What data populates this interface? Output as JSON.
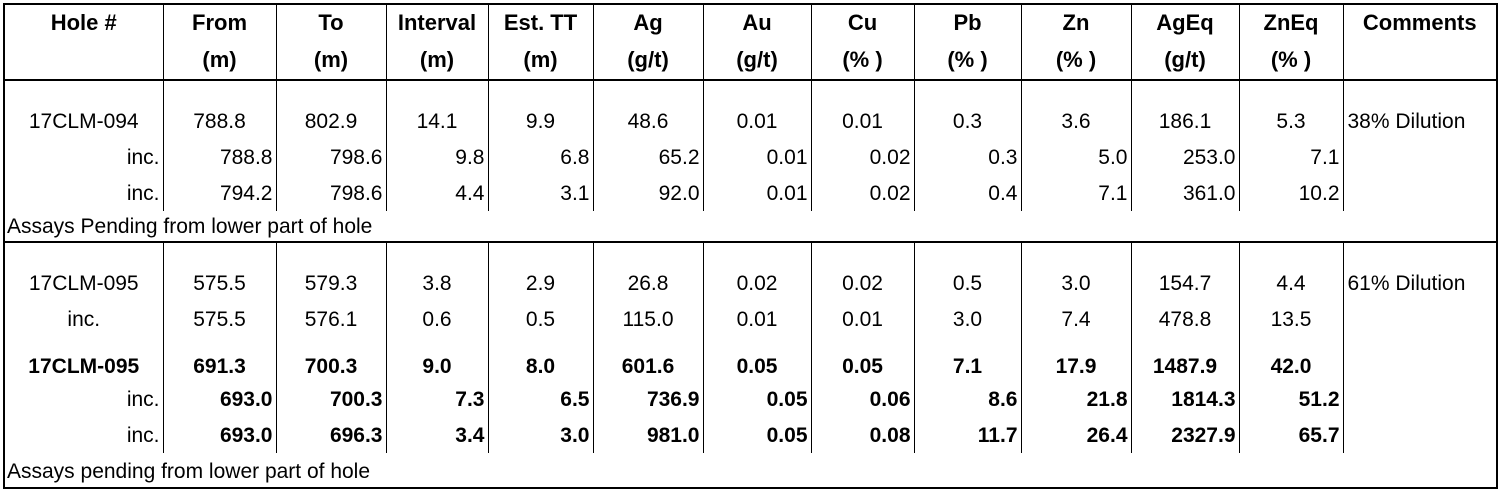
{
  "headers": [
    {
      "line1": "Hole #",
      "line2": ""
    },
    {
      "line1": "From",
      "line2": "(m)"
    },
    {
      "line1": "To",
      "line2": "(m)"
    },
    {
      "line1": "Interval",
      "line2": "(m)"
    },
    {
      "line1": "Est. TT",
      "line2": "(m)"
    },
    {
      "line1": "Ag",
      "line2": "(g/t)"
    },
    {
      "line1": "Au",
      "line2": "(g/t)"
    },
    {
      "line1": "Cu",
      "line2": "(% )"
    },
    {
      "line1": "Pb",
      "line2": "(% )"
    },
    {
      "line1": "Zn",
      "line2": "(% )"
    },
    {
      "line1": "AgEq",
      "line2": "(g/t)"
    },
    {
      "line1": "ZnEq",
      "line2": "(% )"
    },
    {
      "line1": "Comments",
      "line2": ""
    }
  ],
  "block1": {
    "rows": [
      {
        "hole": "17CLM-094",
        "from": "788.8",
        "to": "802.9",
        "interval": "14.1",
        "tt": "9.9",
        "ag": "48.6",
        "au": "0.01",
        "cu": "0.01",
        "pb": "0.3",
        "zn": "3.6",
        "ageq": "186.1",
        "zneq": "5.3",
        "comment": "38% Dilution"
      },
      {
        "hole": "inc.",
        "from": "788.8",
        "to": "798.6",
        "interval": "9.8",
        "tt": "6.8",
        "ag": "65.2",
        "au": "0.01",
        "cu": "0.02",
        "pb": "0.3",
        "zn": "5.0",
        "ageq": "253.0",
        "zneq": "7.1",
        "comment": ""
      },
      {
        "hole": "inc.",
        "from": "794.2",
        "to": "798.6",
        "interval": "4.4",
        "tt": "3.1",
        "ag": "92.0",
        "au": "0.01",
        "cu": "0.02",
        "pb": "0.4",
        "zn": "7.1",
        "ageq": "361.0",
        "zneq": "10.2",
        "comment": ""
      }
    ],
    "note": "Assays Pending from lower part of hole"
  },
  "block2": {
    "rows_a": [
      {
        "hole": "17CLM-095",
        "from": "575.5",
        "to": "579.3",
        "interval": "3.8",
        "tt": "2.9",
        "ag": "26.8",
        "au": "0.02",
        "cu": "0.02",
        "pb": "0.5",
        "zn": "3.0",
        "ageq": "154.7",
        "zneq": "4.4",
        "comment": "61% Dilution"
      },
      {
        "hole": "inc.",
        "from": "575.5",
        "to": "576.1",
        "interval": "0.6",
        "tt": "0.5",
        "ag": "115.0",
        "au": "0.01",
        "cu": "0.01",
        "pb": "3.0",
        "zn": "7.4",
        "ageq": "478.8",
        "zneq": "13.5",
        "comment": ""
      }
    ],
    "rows_b": [
      {
        "hole": "17CLM-095",
        "from": "691.3",
        "to": "700.3",
        "interval": "9.0",
        "tt": "8.0",
        "ag": "601.6",
        "au": "0.05",
        "cu": "0.05",
        "pb": "7.1",
        "zn": "17.9",
        "ageq": "1487.9",
        "zneq": "42.0",
        "comment": ""
      },
      {
        "hole": "inc.",
        "from": "693.0",
        "to": "700.3",
        "interval": "7.3",
        "tt": "6.5",
        "ag": "736.9",
        "au": "0.05",
        "cu": "0.06",
        "pb": "8.6",
        "zn": "21.8",
        "ageq": "1814.3",
        "zneq": "51.2",
        "comment": ""
      },
      {
        "hole": "inc.",
        "from": "693.0",
        "to": "696.3",
        "interval": "3.4",
        "tt": "3.0",
        "ag": "981.0",
        "au": "0.05",
        "cu": "0.08",
        "pb": "11.7",
        "zn": "26.4",
        "ageq": "2327.9",
        "zneq": "65.7",
        "comment": ""
      }
    ],
    "note": "Assays pending from lower part of hole"
  }
}
